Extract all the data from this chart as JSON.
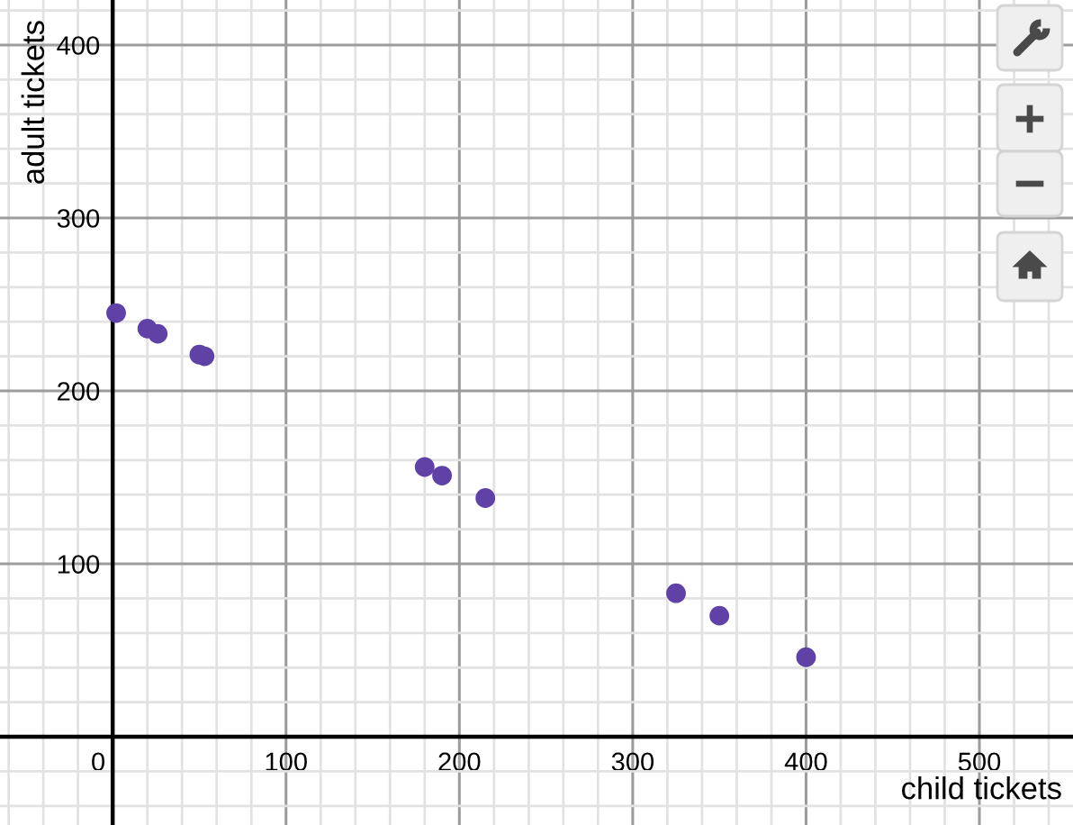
{
  "chart_data": {
    "type": "scatter",
    "xlabel": "child tickets",
    "ylabel": "adult tickets",
    "x": [
      2,
      20,
      26,
      50,
      53,
      180,
      190,
      215,
      325,
      350,
      400
    ],
    "values": [
      245,
      236,
      233,
      221,
      220,
      156,
      151,
      138,
      83,
      70,
      46
    ],
    "color": "#6042a6",
    "marker": "circle",
    "grid": true,
    "xlim": [
      -65,
      554
    ],
    "ylim": [
      -51,
      426
    ],
    "xticks": [
      {
        "value": -60,
        "label": null
      },
      {
        "value": -40,
        "label": null
      },
      {
        "value": -20,
        "label": null
      },
      0,
      {
        "value": 20,
        "label": null
      },
      {
        "value": 40,
        "label": null
      },
      {
        "value": 60,
        "label": null
      },
      {
        "value": 80,
        "label": null
      },
      100,
      {
        "value": 120,
        "label": null
      },
      {
        "value": 140,
        "label": null
      },
      {
        "value": 160,
        "label": null
      },
      {
        "value": 180,
        "label": null
      },
      200,
      {
        "value": 220,
        "label": null
      },
      {
        "value": 240,
        "label": null
      },
      {
        "value": 260,
        "label": null
      },
      {
        "value": 280,
        "label": null
      },
      300,
      {
        "value": 320,
        "label": null
      },
      {
        "value": 340,
        "label": null
      },
      {
        "value": 360,
        "label": null
      },
      {
        "value": 380,
        "label": null
      },
      400,
      {
        "value": 420,
        "label": null
      },
      {
        "value": 440,
        "label": null
      },
      {
        "value": 460,
        "label": null
      },
      {
        "value": 480,
        "label": null
      },
      500,
      {
        "value": 520,
        "label": null
      },
      {
        "value": 540,
        "label": null
      }
    ],
    "yticks": [
      {
        "value": -40,
        "label": null
      },
      {
        "value": -20,
        "label": null
      },
      {
        "value": 0,
        "label": null
      },
      {
        "value": 20,
        "label": null
      },
      {
        "value": 40,
        "label": null
      },
      {
        "value": 60,
        "label": null
      },
      {
        "value": 80,
        "label": null
      },
      100,
      {
        "value": 120,
        "label": null
      },
      {
        "value": 140,
        "label": null
      },
      {
        "value": 160,
        "label": null
      },
      {
        "value": 180,
        "label": null
      },
      200,
      {
        "value": 220,
        "label": null
      },
      {
        "value": 240,
        "label": null
      },
      {
        "value": 260,
        "label": null
      },
      {
        "value": 280,
        "label": null
      },
      300,
      {
        "value": 320,
        "label": null
      },
      {
        "value": 340,
        "label": null
      },
      {
        "value": 360,
        "label": null
      },
      {
        "value": 380,
        "label": null
      },
      400,
      {
        "value": 420,
        "label": null
      }
    ]
  }
}
